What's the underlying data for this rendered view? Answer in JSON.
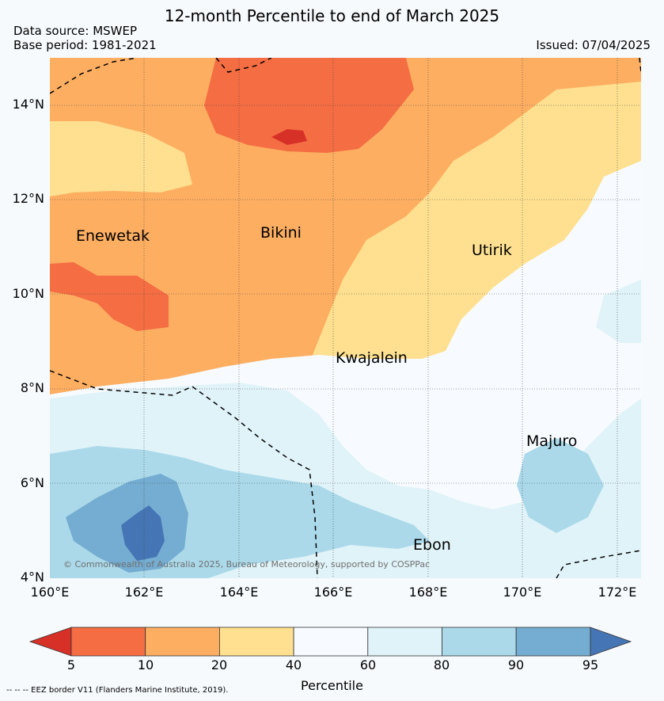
{
  "header": {
    "title": "12-month Percentile to end of March 2025",
    "data_source": "Data source: MSWEP",
    "base_period": "Base period: 1981-2021",
    "issued": "Issued: 07/04/2025"
  },
  "map": {
    "lat_labels": [
      "14°N",
      "12°N",
      "10°N",
      "8°N",
      "6°N",
      "4°N"
    ],
    "lon_labels": [
      "160°E",
      "162°E",
      "164°E",
      "166°E",
      "168°E",
      "170°E",
      "172°E"
    ],
    "places": [
      "Enewetak",
      "Bikini",
      "Utirik",
      "Kwajalein",
      "Majuro",
      "Ebon"
    ],
    "copyright": "© Commonwealth of Australia 2025, Bureau of Meteorology, supported by COSPPac"
  },
  "legend": {
    "ticks": [
      "5",
      "10",
      "20",
      "40",
      "60",
      "80",
      "90",
      "95"
    ],
    "label": "Percentile",
    "colors": [
      "#d73027",
      "#f46d43",
      "#fdae61",
      "#fee090",
      "#f7fbff",
      "#e0f3f8",
      "#abd9e9",
      "#74add1",
      "#4575b4"
    ]
  },
  "footer": {
    "eez": "--  --  -- EEZ border V11 (Flanders Marine Institute, 2019)."
  }
}
